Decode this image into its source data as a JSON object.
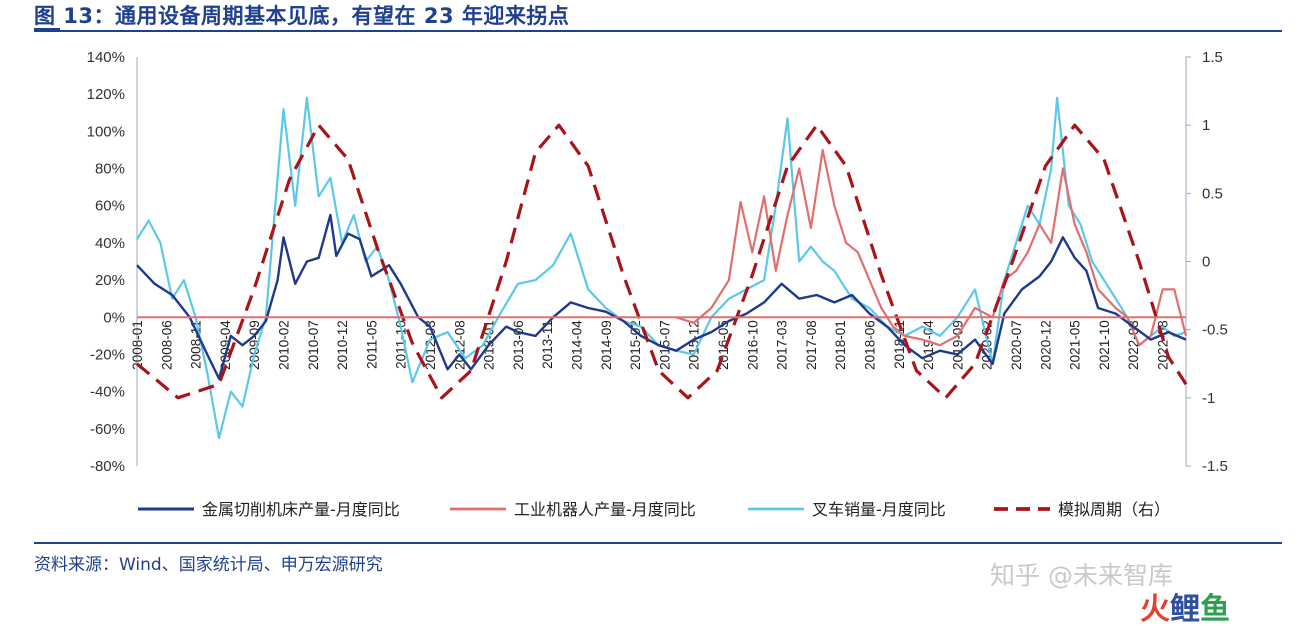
{
  "title": "图 13：通用设备周期基本见底，有望在 23 年迎来拐点",
  "source": "资料来源：Wind、国家统计局、申万宏源研究",
  "watermark": "知乎 @未来智库",
  "watermark_logo": [
    "火",
    "鲤",
    "鱼"
  ],
  "colors": {
    "series1": "#1f3a8a",
    "series2": "#e07070",
    "series3": "#5bc8ea",
    "series4": "#a8141a",
    "title": "#1f3f8f",
    "axis": "#7f9fbf"
  },
  "chart_data": {
    "type": "line",
    "left_axis": {
      "ylim": [
        -80,
        140
      ],
      "step": 20,
      "unit": "%",
      "ticks": [
        "140%",
        "120%",
        "100%",
        "80%",
        "60%",
        "40%",
        "20%",
        "0%",
        "-20%",
        "-40%",
        "-60%",
        "-80%"
      ]
    },
    "right_axis": {
      "ylim": [
        -1.5,
        1.5
      ],
      "step": 0.5,
      "ticks": [
        "1.5",
        "1",
        "0.5",
        "0",
        "-0.5",
        "-1",
        "-1.5"
      ]
    },
    "x_range": [
      "2008-01",
      "2022-12"
    ],
    "x_ticks": [
      "2008-01",
      "2008-06",
      "2008-11",
      "2009-04",
      "2009-09",
      "2010-02",
      "2010-07",
      "2010-12",
      "2011-05",
      "2011-10",
      "2012-03",
      "2012-08",
      "2013-01",
      "2013-06",
      "2013-11",
      "2014-04",
      "2014-09",
      "2015-02",
      "2015-07",
      "2015-12",
      "2016-05",
      "2016-10",
      "2017-03",
      "2017-08",
      "2018-01",
      "2018-06",
      "2018-11",
      "2019-04",
      "2019-09",
      "2020-02",
      "2020-07",
      "2020-12",
      "2021-05",
      "2021-10",
      "2022-03",
      "2022-08"
    ],
    "grid": false,
    "legend_position": "bottom",
    "series": [
      {
        "name": "金属切削机床产量-月度同比",
        "axis": "left",
        "style": "solid",
        "points": [
          [
            "2008-01",
            28
          ],
          [
            "2008-04",
            18
          ],
          [
            "2008-07",
            12
          ],
          [
            "2008-10",
            0
          ],
          [
            "2009-01",
            -20
          ],
          [
            "2009-03",
            -33
          ],
          [
            "2009-05",
            -10
          ],
          [
            "2009-07",
            -15
          ],
          [
            "2009-09",
            -10
          ],
          [
            "2009-11",
            -2
          ],
          [
            "2010-01",
            20
          ],
          [
            "2010-02",
            43
          ],
          [
            "2010-04",
            18
          ],
          [
            "2010-06",
            30
          ],
          [
            "2010-08",
            32
          ],
          [
            "2010-10",
            55
          ],
          [
            "2010-11",
            33
          ],
          [
            "2011-01",
            45
          ],
          [
            "2011-03",
            42
          ],
          [
            "2011-05",
            22
          ],
          [
            "2011-08",
            28
          ],
          [
            "2011-10",
            18
          ],
          [
            "2012-01",
            0
          ],
          [
            "2012-03",
            -5
          ],
          [
            "2012-06",
            -28
          ],
          [
            "2012-08",
            -20
          ],
          [
            "2012-10",
            -28
          ],
          [
            "2013-01",
            -15
          ],
          [
            "2013-04",
            -5
          ],
          [
            "2013-06",
            -8
          ],
          [
            "2013-09",
            -10
          ],
          [
            "2013-12",
            0
          ],
          [
            "2014-03",
            8
          ],
          [
            "2014-06",
            5
          ],
          [
            "2014-09",
            3
          ],
          [
            "2014-12",
            -2
          ],
          [
            "2015-03",
            -10
          ],
          [
            "2015-06",
            -15
          ],
          [
            "2015-09",
            -18
          ],
          [
            "2015-12",
            -12
          ],
          [
            "2016-03",
            -8
          ],
          [
            "2016-06",
            -2
          ],
          [
            "2016-09",
            2
          ],
          [
            "2016-12",
            8
          ],
          [
            "2017-03",
            18
          ],
          [
            "2017-06",
            10
          ],
          [
            "2017-09",
            12
          ],
          [
            "2017-12",
            8
          ],
          [
            "2018-03",
            12
          ],
          [
            "2018-06",
            2
          ],
          [
            "2018-09",
            -5
          ],
          [
            "2018-12",
            -15
          ],
          [
            "2019-03",
            -22
          ],
          [
            "2019-06",
            -18
          ],
          [
            "2019-09",
            -20
          ],
          [
            "2019-12",
            -12
          ],
          [
            "2020-03",
            -25
          ],
          [
            "2020-05",
            2
          ],
          [
            "2020-08",
            15
          ],
          [
            "2020-11",
            22
          ],
          [
            "2021-01",
            30
          ],
          [
            "2021-03",
            43
          ],
          [
            "2021-05",
            32
          ],
          [
            "2021-07",
            25
          ],
          [
            "2021-09",
            5
          ],
          [
            "2021-12",
            2
          ],
          [
            "2022-03",
            -5
          ],
          [
            "2022-06",
            -12
          ],
          [
            "2022-09",
            -8
          ],
          [
            "2022-12",
            -12
          ]
        ]
      },
      {
        "name": "工业机器人产量-月度同比",
        "axis": "left",
        "style": "solid",
        "points": [
          [
            "2015-09",
            0
          ],
          [
            "2015-12",
            -3
          ],
          [
            "2016-03",
            5
          ],
          [
            "2016-06",
            20
          ],
          [
            "2016-08",
            62
          ],
          [
            "2016-10",
            35
          ],
          [
            "2016-12",
            65
          ],
          [
            "2017-02",
            25
          ],
          [
            "2017-04",
            55
          ],
          [
            "2017-06",
            80
          ],
          [
            "2017-08",
            48
          ],
          [
            "2017-10",
            90
          ],
          [
            "2017-12",
            60
          ],
          [
            "2018-02",
            40
          ],
          [
            "2018-04",
            35
          ],
          [
            "2018-06",
            20
          ],
          [
            "2018-08",
            5
          ],
          [
            "2018-10",
            -5
          ],
          [
            "2018-12",
            -10
          ],
          [
            "2019-03",
            -12
          ],
          [
            "2019-06",
            -15
          ],
          [
            "2019-09",
            -10
          ],
          [
            "2019-12",
            5
          ],
          [
            "2020-03",
            0
          ],
          [
            "2020-05",
            20
          ],
          [
            "2020-07",
            25
          ],
          [
            "2020-09",
            35
          ],
          [
            "2020-11",
            50
          ],
          [
            "2021-01",
            40
          ],
          [
            "2021-03",
            80
          ],
          [
            "2021-05",
            50
          ],
          [
            "2021-07",
            35
          ],
          [
            "2021-09",
            15
          ],
          [
            "2021-12",
            5
          ],
          [
            "2022-02",
            0
          ],
          [
            "2022-04",
            -15
          ],
          [
            "2022-06",
            -10
          ],
          [
            "2022-08",
            15
          ],
          [
            "2022-10",
            15
          ],
          [
            "2022-12",
            -10
          ]
        ]
      },
      {
        "name": "叉车销量-月度同比",
        "axis": "left",
        "style": "solid",
        "points": [
          [
            "2008-01",
            42
          ],
          [
            "2008-03",
            52
          ],
          [
            "2008-05",
            40
          ],
          [
            "2008-07",
            10
          ],
          [
            "2008-09",
            20
          ],
          [
            "2008-11",
            0
          ],
          [
            "2009-01",
            -30
          ],
          [
            "2009-03",
            -65
          ],
          [
            "2009-05",
            -40
          ],
          [
            "2009-07",
            -48
          ],
          [
            "2009-09",
            -20
          ],
          [
            "2009-11",
            0
          ],
          [
            "2010-01",
            75
          ],
          [
            "2010-02",
            112
          ],
          [
            "2010-04",
            60
          ],
          [
            "2010-06",
            118
          ],
          [
            "2010-08",
            65
          ],
          [
            "2010-10",
            75
          ],
          [
            "2010-12",
            40
          ],
          [
            "2011-02",
            55
          ],
          [
            "2011-04",
            30
          ],
          [
            "2011-06",
            38
          ],
          [
            "2011-08",
            20
          ],
          [
            "2011-10",
            -5
          ],
          [
            "2011-12",
            -35
          ],
          [
            "2012-03",
            -12
          ],
          [
            "2012-06",
            -8
          ],
          [
            "2012-09",
            -22
          ],
          [
            "2012-12",
            -15
          ],
          [
            "2013-03",
            2
          ],
          [
            "2013-06",
            18
          ],
          [
            "2013-09",
            20
          ],
          [
            "2013-12",
            28
          ],
          [
            "2014-03",
            45
          ],
          [
            "2014-06",
            15
          ],
          [
            "2014-09",
            5
          ],
          [
            "2014-12",
            -2
          ],
          [
            "2015-03",
            -5
          ],
          [
            "2015-06",
            -15
          ],
          [
            "2015-09",
            -18
          ],
          [
            "2015-12",
            -20
          ],
          [
            "2016-03",
            0
          ],
          [
            "2016-06",
            10
          ],
          [
            "2016-09",
            15
          ],
          [
            "2016-12",
            20
          ],
          [
            "2017-02",
            60
          ],
          [
            "2017-04",
            107
          ],
          [
            "2017-06",
            30
          ],
          [
            "2017-08",
            38
          ],
          [
            "2017-10",
            30
          ],
          [
            "2017-12",
            25
          ],
          [
            "2018-03",
            10
          ],
          [
            "2018-06",
            5
          ],
          [
            "2018-09",
            -5
          ],
          [
            "2018-12",
            -10
          ],
          [
            "2019-03",
            -5
          ],
          [
            "2019-06",
            -10
          ],
          [
            "2019-09",
            0
          ],
          [
            "2019-12",
            15
          ],
          [
            "2020-03",
            -25
          ],
          [
            "2020-05",
            20
          ],
          [
            "2020-07",
            40
          ],
          [
            "2020-09",
            60
          ],
          [
            "2020-11",
            50
          ],
          [
            "2021-01",
            80
          ],
          [
            "2021-02",
            118
          ],
          [
            "2021-04",
            60
          ],
          [
            "2021-06",
            50
          ],
          [
            "2021-08",
            30
          ],
          [
            "2021-10",
            20
          ],
          [
            "2021-12",
            10
          ],
          [
            "2022-02",
            0
          ],
          [
            "2022-04",
            -15
          ],
          [
            "2022-06",
            -10
          ],
          [
            "2022-08",
            -5
          ],
          [
            "2022-10",
            -10
          ],
          [
            "2022-12",
            -8
          ]
        ]
      },
      {
        "name": "模拟周期（右）",
        "axis": "right",
        "style": "dashed",
        "points": [
          [
            "2008-01",
            -0.75
          ],
          [
            "2008-08",
            -1
          ],
          [
            "2009-03",
            -0.9
          ],
          [
            "2009-09",
            -0.2
          ],
          [
            "2010-03",
            0.6
          ],
          [
            "2010-08",
            1
          ],
          [
            "2011-01",
            0.75
          ],
          [
            "2011-06",
            0.1
          ],
          [
            "2011-12",
            -0.6
          ],
          [
            "2012-05",
            -1
          ],
          [
            "2012-10",
            -0.8
          ],
          [
            "2013-04",
            0
          ],
          [
            "2013-09",
            0.8
          ],
          [
            "2014-01",
            1
          ],
          [
            "2014-06",
            0.7
          ],
          [
            "2014-12",
            -0.1
          ],
          [
            "2015-06",
            -0.8
          ],
          [
            "2015-11",
            -1
          ],
          [
            "2016-04",
            -0.8
          ],
          [
            "2016-10",
            -0.1
          ],
          [
            "2017-04",
            0.7
          ],
          [
            "2017-09",
            1
          ],
          [
            "2018-02",
            0.7
          ],
          [
            "2018-08",
            -0.1
          ],
          [
            "2019-02",
            -0.8
          ],
          [
            "2019-07",
            -1
          ],
          [
            "2019-12",
            -0.75
          ],
          [
            "2020-06",
            -0.05
          ],
          [
            "2020-12",
            0.7
          ],
          [
            "2021-05",
            1
          ],
          [
            "2021-10",
            0.75
          ],
          [
            "2022-04",
            0
          ],
          [
            "2022-09",
            -0.7
          ],
          [
            "2022-12",
            -0.9
          ]
        ]
      }
    ]
  }
}
